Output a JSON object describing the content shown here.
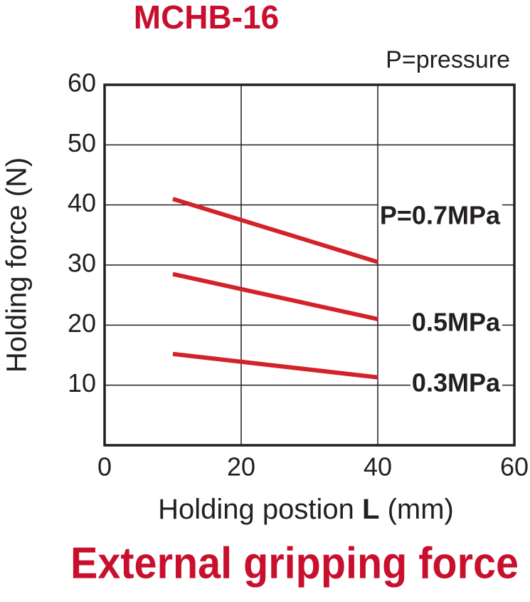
{
  "chart_data": {
    "type": "line",
    "title": "MCHB-16",
    "subtitle": "External gripping force",
    "annotation": "P=pressure",
    "ylabel": "Holding force (N)",
    "xlabel": {
      "text": "Holding postion",
      "symbol": "L",
      "unit": "(mm)"
    },
    "x": [
      10,
      40
    ],
    "series": [
      {
        "name": "P=0.7MPa",
        "color": "#d2232a",
        "values": [
          41,
          30.5
        ]
      },
      {
        "name": "0.5MPa",
        "color": "#d2232a",
        "values": [
          28.5,
          21
        ]
      },
      {
        "name": "0.3MPa",
        "color": "#d2232a",
        "values": [
          15.2,
          11.3
        ]
      }
    ],
    "xlim": [
      0,
      60
    ],
    "xticks": [
      0,
      20,
      40,
      60
    ],
    "ylim": [
      0,
      60
    ],
    "yticks": [
      10,
      20,
      30,
      40,
      50,
      60
    ],
    "grid": true
  }
}
